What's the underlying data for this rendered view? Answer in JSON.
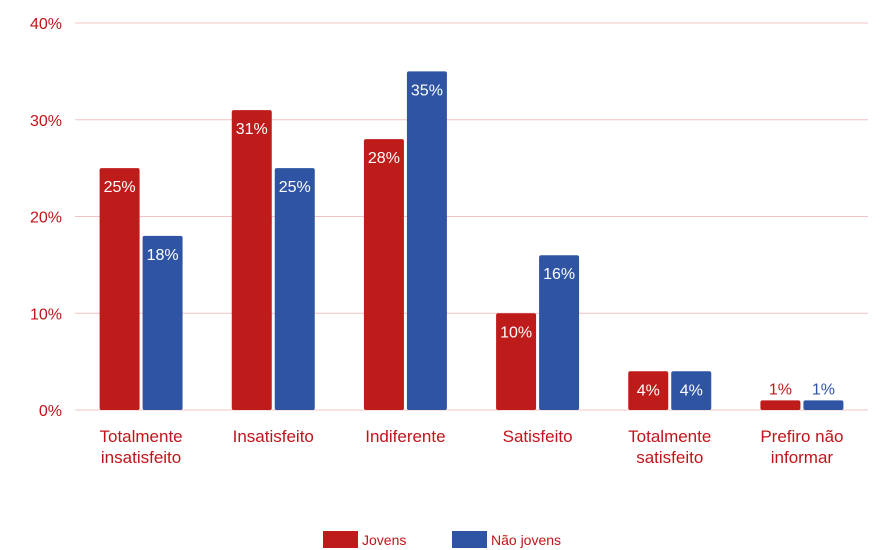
{
  "chart_data": {
    "type": "bar",
    "categories": [
      [
        "Totalmente",
        "insatisfeito"
      ],
      [
        "Insatisfeito"
      ],
      [
        "Indiferente"
      ],
      [
        "Satisfeito"
      ],
      [
        "Totalmente",
        "satisfeito"
      ],
      [
        "Prefiro não",
        "informar"
      ]
    ],
    "series": [
      {
        "name": "Jovens",
        "color": "#be1b1b",
        "values": [
          25,
          31,
          28,
          10,
          4,
          1
        ],
        "labels": [
          "25%",
          "31%",
          "28%",
          "10%",
          "4%",
          "1%"
        ]
      },
      {
        "name": "Não jovens",
        "color": "#2f54a4",
        "values": [
          18,
          25,
          35,
          16,
          4,
          1
        ],
        "labels": [
          "18%",
          "25%",
          "35%",
          "16%",
          "4%",
          "1%"
        ]
      }
    ],
    "y_ticks": [
      "0%",
      "10%",
      "20%",
      "30%",
      "40%"
    ],
    "ylim": [
      0,
      40
    ],
    "grid": true,
    "legend_position": "bottom"
  }
}
